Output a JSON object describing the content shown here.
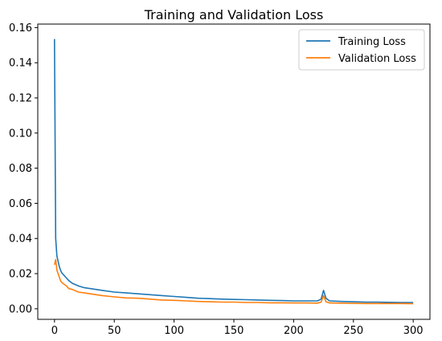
{
  "chart_data": {
    "type": "line",
    "title": "Training and Validation Loss",
    "xlabel": "",
    "ylabel": "",
    "xlim": [
      -14,
      314
    ],
    "ylim": [
      -0.006,
      0.162
    ],
    "xticks": [
      0,
      50,
      100,
      150,
      200,
      250,
      300
    ],
    "yticks": [
      0.0,
      0.02,
      0.04,
      0.06,
      0.08,
      0.1,
      0.12,
      0.14,
      0.16
    ],
    "xtick_labels": [
      "0",
      "50",
      "100",
      "150",
      "200",
      "250",
      "300"
    ],
    "ytick_labels": [
      "0.00",
      "0.02",
      "0.04",
      "0.06",
      "0.08",
      "0.10",
      "0.12",
      "0.14",
      "0.16"
    ],
    "grid": false,
    "legend_position": "top-right",
    "series": [
      {
        "name": "Training Loss",
        "color": "#1f77b4",
        "x": [
          0,
          1,
          2,
          3,
          4,
          5,
          6,
          8,
          10,
          12,
          15,
          20,
          25,
          30,
          35,
          40,
          50,
          60,
          70,
          80,
          90,
          100,
          110,
          120,
          130,
          140,
          150,
          160,
          170,
          180,
          190,
          200,
          210,
          220,
          223,
          225,
          227,
          230,
          240,
          250,
          260,
          270,
          280,
          290,
          300
        ],
        "values": [
          0.1535,
          0.04,
          0.03,
          0.027,
          0.024,
          0.022,
          0.0205,
          0.019,
          0.0175,
          0.016,
          0.0145,
          0.013,
          0.012,
          0.0115,
          0.011,
          0.0105,
          0.0095,
          0.009,
          0.0085,
          0.008,
          0.0075,
          0.007,
          0.0065,
          0.006,
          0.0058,
          0.0055,
          0.0053,
          0.0052,
          0.005,
          0.0048,
          0.0047,
          0.0045,
          0.0045,
          0.0045,
          0.0055,
          0.0105,
          0.006,
          0.0045,
          0.0042,
          0.004,
          0.0038,
          0.0038,
          0.0037,
          0.0036,
          0.0036
        ]
      },
      {
        "name": "Validation Loss",
        "color": "#ff7f0e",
        "x": [
          0,
          1,
          2,
          3,
          4,
          5,
          6,
          8,
          10,
          12,
          15,
          20,
          25,
          30,
          35,
          40,
          50,
          60,
          70,
          80,
          90,
          100,
          110,
          120,
          130,
          140,
          150,
          160,
          170,
          180,
          190,
          200,
          210,
          220,
          223,
          225,
          227,
          230,
          240,
          250,
          260,
          270,
          280,
          290,
          300
        ],
        "values": [
          0.025,
          0.028,
          0.022,
          0.02,
          0.018,
          0.016,
          0.015,
          0.014,
          0.013,
          0.0115,
          0.011,
          0.0095,
          0.009,
          0.0085,
          0.008,
          0.0075,
          0.0068,
          0.0062,
          0.006,
          0.0055,
          0.005,
          0.0048,
          0.0045,
          0.0042,
          0.004,
          0.0038,
          0.0038,
          0.0036,
          0.0036,
          0.0034,
          0.0034,
          0.0033,
          0.0033,
          0.0032,
          0.0038,
          0.0075,
          0.004,
          0.0033,
          0.0032,
          0.0031,
          0.003,
          0.003,
          0.003,
          0.003,
          0.0029
        ]
      }
    ]
  }
}
